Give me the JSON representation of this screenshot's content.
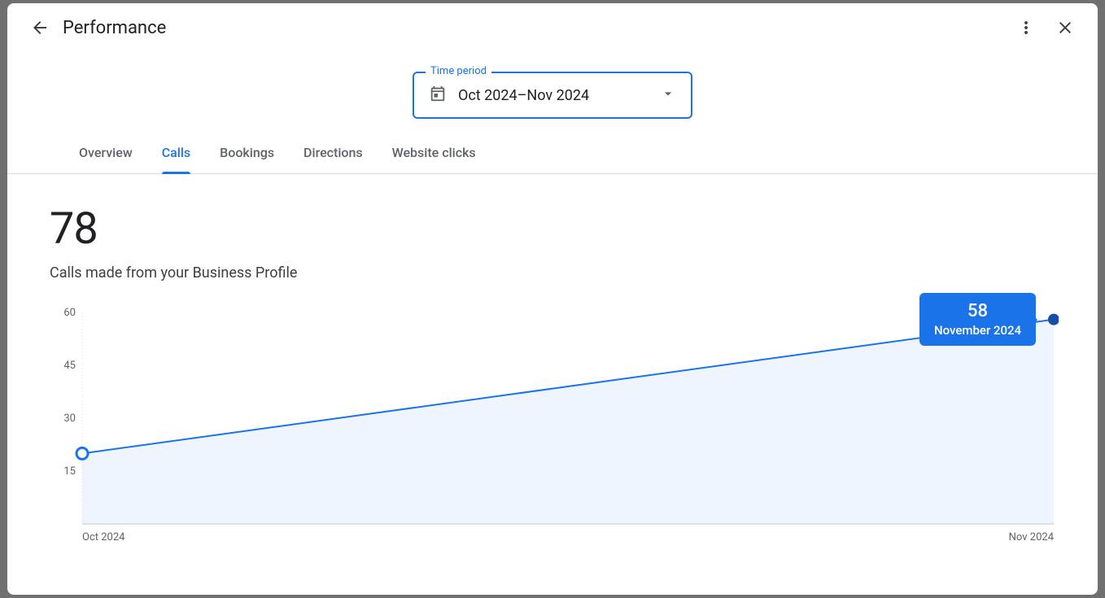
{
  "header": {
    "title": "Performance"
  },
  "time_period": {
    "label": "Time period",
    "value": "Oct 2024–Nov 2024"
  },
  "tabs": {
    "items": [
      {
        "label": "Overview",
        "active": false
      },
      {
        "label": "Calls",
        "active": true
      },
      {
        "label": "Bookings",
        "active": false
      },
      {
        "label": "Directions",
        "active": false
      },
      {
        "label": "Website clicks",
        "active": false
      }
    ]
  },
  "summary": {
    "total": "78",
    "subtitle": "Calls made from your Business Profile"
  },
  "chart": {
    "type": "line-area",
    "series_color": "#1a73e8",
    "area_fill": "#d2e3fc",
    "grid_color": "#e8eaed",
    "axis_color": "#bdc1c6",
    "label_color": "#5f6368",
    "label_fontsize": 13,
    "y_ticks": [
      15,
      30,
      45,
      60
    ],
    "y_max": 60,
    "y_min": 0,
    "line_width": 2,
    "marker_radius_open": 7,
    "marker_radius_filled": 7,
    "points": [
      {
        "x_label": "Oct 2024",
        "value": 20,
        "marker": "open"
      },
      {
        "x_label": "Nov 2024",
        "value": 58,
        "marker": "filled"
      }
    ],
    "tooltip": {
      "point_index": 1,
      "value": "58",
      "label": "November 2024",
      "bg": "#1a73e8",
      "text_color": "#ffffff"
    }
  }
}
